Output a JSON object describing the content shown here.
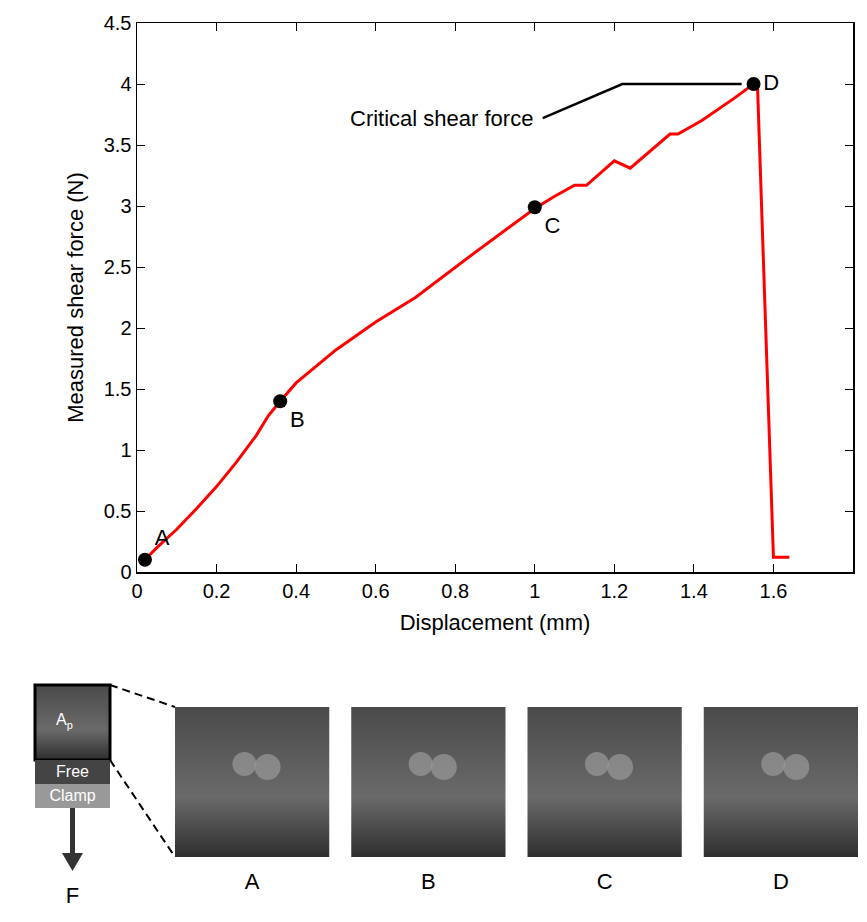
{
  "chart_data": {
    "type": "line",
    "x_label": "Displacement (mm)",
    "y_label": "Measured shear force (N)",
    "xlim": [
      0,
      1.8
    ],
    "xticks": [
      0,
      0.2,
      0.4,
      0.6,
      0.8,
      1,
      1.2,
      1.4,
      1.6
    ],
    "ylim": [
      0,
      4.5
    ],
    "yticks": [
      0,
      0.5,
      1,
      1.5,
      2,
      2.5,
      3,
      3.5,
      4,
      4.5
    ],
    "grid": false,
    "series": [
      {
        "name": "Measured shear force",
        "color": "#ff0000",
        "line_style": "solid",
        "x": [
          0.02,
          0.05,
          0.1,
          0.15,
          0.2,
          0.25,
          0.3,
          0.33,
          0.36,
          0.4,
          0.5,
          0.6,
          0.7,
          0.78,
          0.85,
          0.9,
          1.0,
          1.05,
          1.1,
          1.13,
          1.2,
          1.24,
          1.3,
          1.34,
          1.36,
          1.42,
          1.5,
          1.55,
          1.56,
          1.6,
          1.64
        ],
        "values": [
          0.1,
          0.2,
          0.35,
          0.52,
          0.7,
          0.9,
          1.12,
          1.28,
          1.4,
          1.55,
          1.82,
          2.05,
          2.25,
          2.45,
          2.62,
          2.74,
          2.98,
          3.08,
          3.17,
          3.17,
          3.37,
          3.31,
          3.48,
          3.59,
          3.59,
          3.7,
          3.88,
          4.0,
          3.98,
          0.12,
          0.12
        ]
      }
    ],
    "points": {
      "type": "scatter",
      "color": "#000000",
      "marker": "circle",
      "labels": [
        "A",
        "B",
        "C",
        "D"
      ],
      "x": [
        0.02,
        0.36,
        1.0,
        1.55
      ],
      "values": [
        0.1,
        1.4,
        2.99,
        4.0
      ]
    },
    "annotations": [
      {
        "text": "Critical shear force",
        "x": 1.55,
        "y": 4.0
      }
    ]
  },
  "figure_panel": {
    "schematic": {
      "area_label": "A",
      "area_subscript": "p",
      "free_label": "Free",
      "clamp_label": "Clamp",
      "force_label": "F"
    },
    "photos": [
      "A",
      "B",
      "C",
      "D"
    ]
  }
}
